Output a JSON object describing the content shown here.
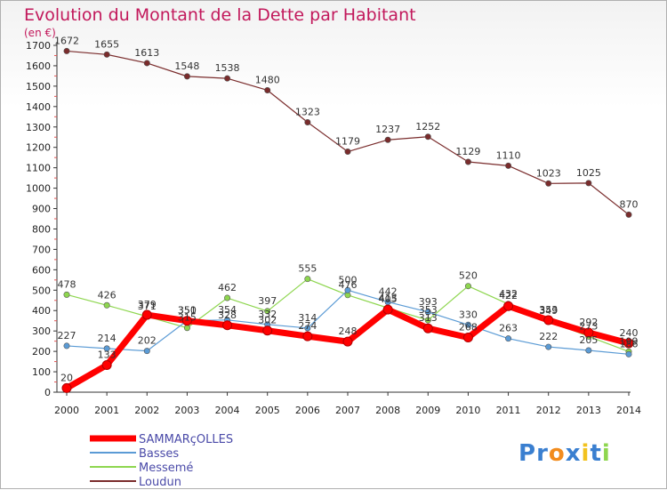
{
  "title": "Evolution du Montant de la Dette par Habitant",
  "subtitle": "(en €)",
  "brand": {
    "text": "Proxiti",
    "letters": [
      "P",
      "r",
      "o",
      "x",
      "i",
      "t",
      "i"
    ]
  },
  "colors": {
    "title": "#c2185b",
    "SAMMARçOLLES": "#ff0000",
    "Basses": "#5b9bd5",
    "Messemé": "#8ed64f",
    "Loudun": "#7a2c2c"
  },
  "chart_data": {
    "type": "line",
    "title": "Evolution du Montant de la Dette par Habitant",
    "subtitle": "(en €)",
    "x": [
      "2000",
      "2001",
      "2002",
      "2003",
      "2004",
      "2005",
      "2006",
      "2007",
      "2008",
      "2009",
      "2010",
      "2011",
      "2012",
      "2013",
      "2014"
    ],
    "y_ticks": [
      "0",
      "100",
      "200",
      "300",
      "400",
      "500",
      "600",
      "700",
      "800",
      "900",
      "1000",
      "1100",
      "1200",
      "1300",
      "1400",
      "1500",
      "1600",
      "1700"
    ],
    "ylim": [
      0,
      1700
    ],
    "grid": false,
    "legend_position": "bottom-left",
    "series": [
      {
        "name": "Loudun",
        "values": [
          1672,
          1655,
          1613,
          1548,
          1538,
          1480,
          1323,
          1179,
          1237,
          1252,
          1129,
          1110,
          1023,
          1025,
          870
        ]
      },
      {
        "name": "Messemé",
        "values": [
          478,
          426,
          371,
          315,
          462,
          397,
          555,
          476,
          413,
          353,
          520,
          432,
          349,
          273,
          199
        ]
      },
      {
        "name": "Basses",
        "values": [
          227,
          214,
          202,
          351,
          354,
          332,
          314,
          500,
          442,
          393,
          330,
          263,
          222,
          205,
          186
        ]
      },
      {
        "name": "SAMMARçOLLES",
        "values": [
          20,
          133,
          379,
          350,
          328,
          302,
          274,
          248,
          405,
          313,
          268,
          422,
          353,
          292,
          240
        ]
      }
    ]
  }
}
